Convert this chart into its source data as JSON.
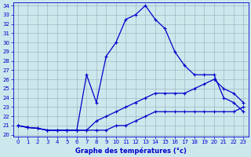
{
  "xlabel": "Graphe des températures (°c)",
  "hours": [
    0,
    1,
    2,
    3,
    4,
    5,
    6,
    7,
    8,
    9,
    10,
    11,
    12,
    13,
    14,
    15,
    16,
    17,
    18,
    19,
    20,
    21,
    22,
    23
  ],
  "line1": [
    21.0,
    20.8,
    20.7,
    20.5,
    20.5,
    20.5,
    20.5,
    26.5,
    23.5,
    28.5,
    30.0,
    32.5,
    33.0,
    34.0,
    32.5,
    31.5,
    29.0,
    27.5,
    26.5,
    26.5,
    26.5,
    24.0,
    23.5,
    22.5
  ],
  "line2": [
    21.0,
    20.8,
    20.7,
    20.5,
    20.5,
    20.5,
    20.5,
    20.5,
    21.5,
    22.0,
    22.5,
    23.0,
    23.5,
    24.0,
    24.5,
    24.5,
    24.5,
    24.5,
    25.0,
    25.5,
    26.0,
    25.0,
    24.5,
    23.5
  ],
  "line3": [
    21.0,
    20.8,
    20.7,
    20.5,
    20.5,
    20.5,
    20.5,
    20.5,
    20.5,
    20.5,
    21.0,
    21.0,
    21.5,
    22.0,
    22.5,
    22.5,
    22.5,
    22.5,
    22.5,
    22.5,
    22.5,
    22.5,
    22.5,
    23.0
  ],
  "line_color": "#0000cc",
  "bg_color": "#cce8ec",
  "grid_color": "#99aabb",
  "ylim": [
    20,
    34
  ],
  "xlim": [
    -0.5,
    23.5
  ],
  "yticks": [
    20,
    21,
    22,
    23,
    24,
    25,
    26,
    27,
    28,
    29,
    30,
    31,
    32,
    33,
    34
  ],
  "xticks": [
    0,
    1,
    2,
    3,
    4,
    5,
    6,
    7,
    8,
    9,
    10,
    11,
    12,
    13,
    14,
    15,
    16,
    17,
    18,
    19,
    20,
    21,
    22,
    23
  ],
  "marker": "+",
  "marker_size": 3,
  "linewidth": 0.9,
  "tick_fontsize": 5,
  "xlabel_fontsize": 6
}
